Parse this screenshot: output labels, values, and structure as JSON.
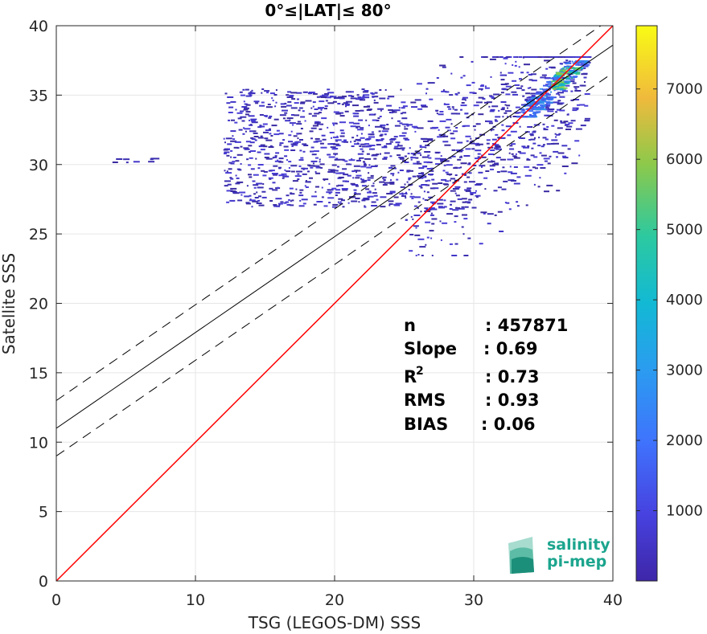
{
  "chart_data": {
    "type": "heatmap",
    "title": "0°≤|LAT|≤ 80°",
    "xlabel": "TSG (LEGOS-DM) SSS",
    "ylabel": "Satellite SSS",
    "xlim": [
      0,
      40
    ],
    "ylim": [
      0,
      40
    ],
    "xticks": [
      "0",
      "10",
      "20",
      "30",
      "40"
    ],
    "yticks": [
      "0",
      "5",
      "10",
      "15",
      "20",
      "25",
      "30",
      "35",
      "40"
    ],
    "grid": true,
    "colorbar": {
      "range": [
        0,
        7900
      ],
      "ticks": [
        "1000",
        "2000",
        "3000",
        "4000",
        "5000",
        "6000",
        "7000"
      ],
      "tick_values": [
        1000,
        2000,
        3000,
        4000,
        5000,
        6000,
        7000
      ]
    },
    "lines": [
      {
        "kind": "one-to-one",
        "color": "#ff0000",
        "slope": 1.0,
        "intercept": 0.0
      },
      {
        "kind": "regression",
        "color": "#000000",
        "slope": 0.69,
        "intercept": 11.0
      },
      {
        "kind": "regression-upper",
        "color": "#000000",
        "dashed": true,
        "slope": 0.69,
        "intercept": 13.0
      },
      {
        "kind": "regression-lower",
        "color": "#000000",
        "dashed": true,
        "slope": 0.69,
        "intercept": 9.0
      }
    ],
    "density_regions": [
      {
        "x": [
          4,
          7
        ],
        "y": [
          30.2,
          30.5
        ],
        "level": "low"
      },
      {
        "x": [
          12,
          38
        ],
        "y": [
          23.5,
          37.8
        ],
        "level": "low"
      },
      {
        "x": [
          33,
          38
        ],
        "y": [
          33.5,
          37.5
        ],
        "level": "mid"
      },
      {
        "x": [
          35.5,
          37.5
        ],
        "y": [
          35.5,
          37
        ],
        "level": "high"
      }
    ],
    "stats": [
      {
        "label": "n",
        "value": ": 457871"
      },
      {
        "label": "Slope",
        "value": ": 0.69"
      },
      {
        "label": "R",
        "sup": "2",
        "value": ": 0.73"
      },
      {
        "label": "RMS",
        "value": ": 0.93"
      },
      {
        "label": "BIAS",
        "value": ": 0.06"
      }
    ]
  },
  "logo": {
    "line1": "salinity",
    "line2": "pi-mep"
  }
}
